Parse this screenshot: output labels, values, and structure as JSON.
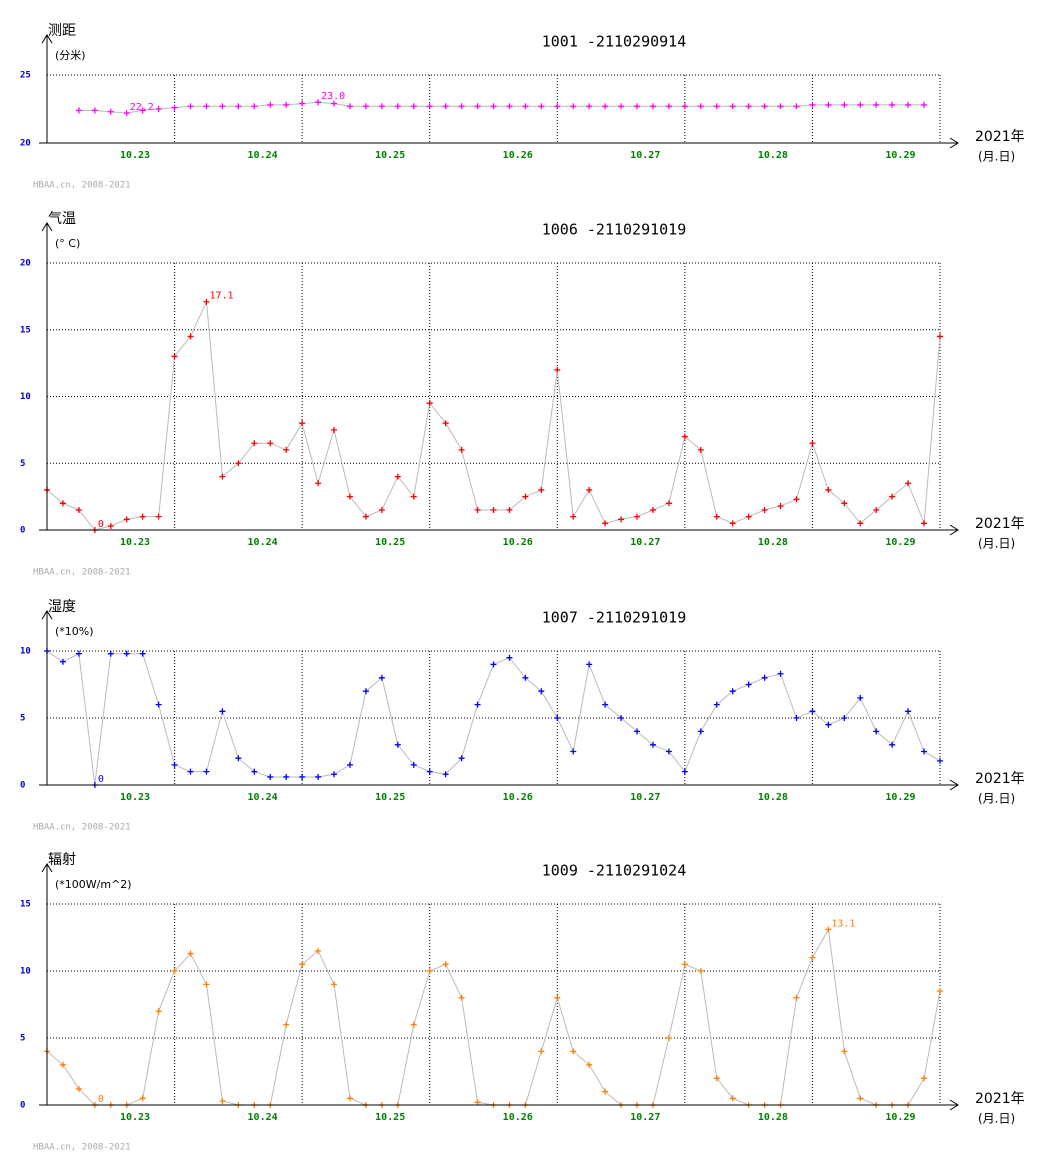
{
  "chart_data": [
    {
      "type": "line",
      "title": "测距",
      "unit": "(分米)",
      "subtitle": "1001 -2110290914",
      "x_axis_label": "2021年",
      "x_axis_unit": "(月.日)",
      "footer": "HBAA.cn, 2008-2021",
      "color": "#ff00ff",
      "x": [
        0,
        0.125,
        0.25,
        0.375,
        0.5,
        0.625,
        0.75,
        0.875,
        1,
        1.125,
        1.25,
        1.375,
        1.5,
        1.625,
        1.75,
        1.875,
        2,
        2.125,
        2.25,
        2.375,
        2.5,
        2.625,
        2.75,
        2.875,
        3,
        3.125,
        3.25,
        3.375,
        3.5,
        3.625,
        3.75,
        3.875,
        4,
        4.125,
        4.25,
        4.375,
        4.5,
        4.625,
        4.75,
        4.875,
        5,
        5.125,
        5.25,
        5.375,
        5.5,
        5.625,
        5.75,
        5.875,
        6,
        6.125,
        6.25,
        6.375,
        6.5,
        6.625,
        6.75,
        6.875,
        7
      ],
      "values": [
        null,
        null,
        22.4,
        22.4,
        22.3,
        22.2,
        22.4,
        22.5,
        22.6,
        22.7,
        22.7,
        22.7,
        22.7,
        22.7,
        22.8,
        22.8,
        22.9,
        23.0,
        22.9,
        22.7,
        22.7,
        22.7,
        22.7,
        22.7,
        22.7,
        22.7,
        22.7,
        22.7,
        22.7,
        22.7,
        22.7,
        22.7,
        22.7,
        22.7,
        22.7,
        22.7,
        22.7,
        22.7,
        22.7,
        22.7,
        22.7,
        22.7,
        22.7,
        22.7,
        22.7,
        22.7,
        22.7,
        22.7,
        22.8,
        22.8,
        22.8,
        22.8,
        22.8,
        22.8,
        22.8,
        22.8,
        null
      ],
      "xlim": [
        0,
        7
      ],
      "xticks": [
        1,
        2,
        3,
        4,
        5,
        6
      ],
      "x_tick_labels": [
        "10.23",
        "10.24",
        "10.25",
        "10.26",
        "10.27",
        "10.28",
        "10.29"
      ],
      "ylim": [
        20,
        25
      ],
      "yticks": [
        20,
        25
      ],
      "grid": true,
      "annotations": [
        {
          "text": "22.2",
          "x": 0.625,
          "y": 22.2
        },
        {
          "text": "23.0",
          "x": 2.125,
          "y": 23.0
        }
      ]
    },
    {
      "type": "line",
      "title": "气温",
      "unit": "(° C)",
      "subtitle": "1006 -2110291019",
      "x_axis_label": "2021年",
      "x_axis_unit": "(月.日)",
      "footer": "HBAA.cn, 2008-2021",
      "color": "#ff0000",
      "x": [
        0,
        0.125,
        0.25,
        0.375,
        0.5,
        0.625,
        0.75,
        0.875,
        1,
        1.125,
        1.25,
        1.375,
        1.5,
        1.625,
        1.75,
        1.875,
        2,
        2.125,
        2.25,
        2.375,
        2.5,
        2.625,
        2.75,
        2.875,
        3,
        3.125,
        3.25,
        3.375,
        3.5,
        3.625,
        3.75,
        3.875,
        4,
        4.125,
        4.25,
        4.375,
        4.5,
        4.625,
        4.75,
        4.875,
        5,
        5.125,
        5.25,
        5.375,
        5.5,
        5.625,
        5.75,
        5.875,
        6,
        6.125,
        6.25,
        6.375,
        6.5,
        6.625,
        6.75,
        6.875,
        7
      ],
      "values": [
        3,
        2,
        1.5,
        0,
        0.3,
        0.8,
        1,
        1,
        13,
        14.5,
        17.1,
        4,
        5,
        6.5,
        6.5,
        6,
        8,
        3.5,
        7.5,
        2.5,
        1,
        1.5,
        4,
        2.5,
        9.5,
        8,
        6,
        1.5,
        1.5,
        1.5,
        2.5,
        3,
        12,
        1,
        3,
        0.5,
        0.8,
        1,
        1.5,
        2,
        7,
        6,
        1,
        0.5,
        1,
        1.5,
        1.8,
        2.3,
        6.5,
        3,
        2,
        0.5,
        1.5,
        2.5,
        3.5,
        0.5,
        14.5
      ],
      "xlim": [
        0,
        7
      ],
      "xticks": [
        1,
        2,
        3,
        4,
        5,
        6
      ],
      "x_tick_labels": [
        "10.23",
        "10.24",
        "10.25",
        "10.26",
        "10.27",
        "10.28",
        "10.29"
      ],
      "ylim": [
        0,
        20
      ],
      "yticks": [
        0,
        5,
        10,
        15,
        20
      ],
      "grid": true,
      "annotations": [
        {
          "text": "17.1",
          "x": 1.25,
          "y": 17.1
        },
        {
          "text": "0",
          "x": 0.375,
          "y": 0
        }
      ]
    },
    {
      "type": "line",
      "title": "湿度",
      "unit": "(*10%)",
      "subtitle": "1007 -2110291019",
      "x_axis_label": "2021年",
      "x_axis_unit": "(月.日)",
      "footer": "HBAA.cn, 2008-2021",
      "color": "#0000ff",
      "x": [
        0,
        0.125,
        0.25,
        0.375,
        0.5,
        0.625,
        0.75,
        0.875,
        1,
        1.125,
        1.25,
        1.375,
        1.5,
        1.625,
        1.75,
        1.875,
        2,
        2.125,
        2.25,
        2.375,
        2.5,
        2.625,
        2.75,
        2.875,
        3,
        3.125,
        3.25,
        3.375,
        3.5,
        3.625,
        3.75,
        3.875,
        4,
        4.125,
        4.25,
        4.375,
        4.5,
        4.625,
        4.75,
        4.875,
        5,
        5.125,
        5.25,
        5.375,
        5.5,
        5.625,
        5.75,
        5.875,
        6,
        6.125,
        6.25,
        6.375,
        6.5,
        6.625,
        6.75,
        6.875,
        7
      ],
      "values": [
        10,
        9.2,
        9.8,
        0,
        9.8,
        9.8,
        9.8,
        6,
        1.5,
        1,
        1,
        5.5,
        2,
        1,
        0.6,
        0.6,
        0.6,
        0.6,
        0.8,
        1.5,
        7,
        8,
        3,
        1.5,
        1,
        0.8,
        2,
        6,
        9,
        9.5,
        8,
        7,
        5,
        2.5,
        9,
        6,
        5,
        4,
        3,
        2.5,
        1,
        4,
        6,
        7,
        7.5,
        8,
        8.3,
        5,
        5.5,
        4.5,
        5,
        6.5,
        4,
        3,
        5.5,
        2.5,
        1.8
      ],
      "xlim": [
        0,
        7
      ],
      "xticks": [
        1,
        2,
        3,
        4,
        5,
        6
      ],
      "x_tick_labels": [
        "10.23",
        "10.24",
        "10.25",
        "10.26",
        "10.27",
        "10.28",
        "10.29"
      ],
      "ylim": [
        0,
        10
      ],
      "yticks": [
        0,
        5,
        10
      ],
      "grid": true,
      "annotations": [
        {
          "text": "0",
          "x": 0.375,
          "y": 0
        }
      ]
    },
    {
      "type": "line",
      "title": "辐射",
      "unit": "(*100W/m^2)",
      "subtitle": "1009 -2110291024",
      "x_axis_label": "2021年",
      "x_axis_unit": "(月.日)",
      "footer": "HBAA.cn, 2008-2021",
      "color": "#ff8000",
      "x": [
        0,
        0.125,
        0.25,
        0.375,
        0.5,
        0.625,
        0.75,
        0.875,
        1,
        1.125,
        1.25,
        1.375,
        1.5,
        1.625,
        1.75,
        1.875,
        2,
        2.125,
        2.25,
        2.375,
        2.5,
        2.625,
        2.75,
        2.875,
        3,
        3.125,
        3.25,
        3.375,
        3.5,
        3.625,
        3.75,
        3.875,
        4,
        4.125,
        4.25,
        4.375,
        4.5,
        4.625,
        4.75,
        4.875,
        5,
        5.125,
        5.25,
        5.375,
        5.5,
        5.625,
        5.75,
        5.875,
        6,
        6.125,
        6.25,
        6.375,
        6.5,
        6.625,
        6.75,
        6.875,
        7
      ],
      "values": [
        4,
        3,
        1.2,
        0,
        0,
        0,
        0.5,
        7,
        10,
        11.3,
        9,
        0.3,
        0,
        0,
        0,
        6,
        10.5,
        11.5,
        9,
        0.5,
        0,
        0,
        0,
        6,
        10,
        10.5,
        8,
        0.2,
        0,
        0,
        0,
        4,
        8,
        4,
        3,
        1,
        0,
        0,
        0,
        5,
        10.5,
        10,
        2,
        0.5,
        0,
        0,
        0,
        8,
        11,
        13.1,
        4,
        0.5,
        0,
        0,
        0,
        2,
        8.5
      ],
      "xlim": [
        0,
        7
      ],
      "xticks": [
        1,
        2,
        3,
        4,
        5,
        6
      ],
      "x_tick_labels": [
        "10.23",
        "10.24",
        "10.25",
        "10.26",
        "10.27",
        "10.28",
        "10.29"
      ],
      "ylim": [
        0,
        15
      ],
      "yticks": [
        0,
        5,
        10,
        15
      ],
      "grid": true,
      "annotations": [
        {
          "text": "13.1",
          "x": 6.125,
          "y": 13.1
        },
        {
          "text": "0",
          "x": 0.375,
          "y": 0
        }
      ]
    }
  ]
}
